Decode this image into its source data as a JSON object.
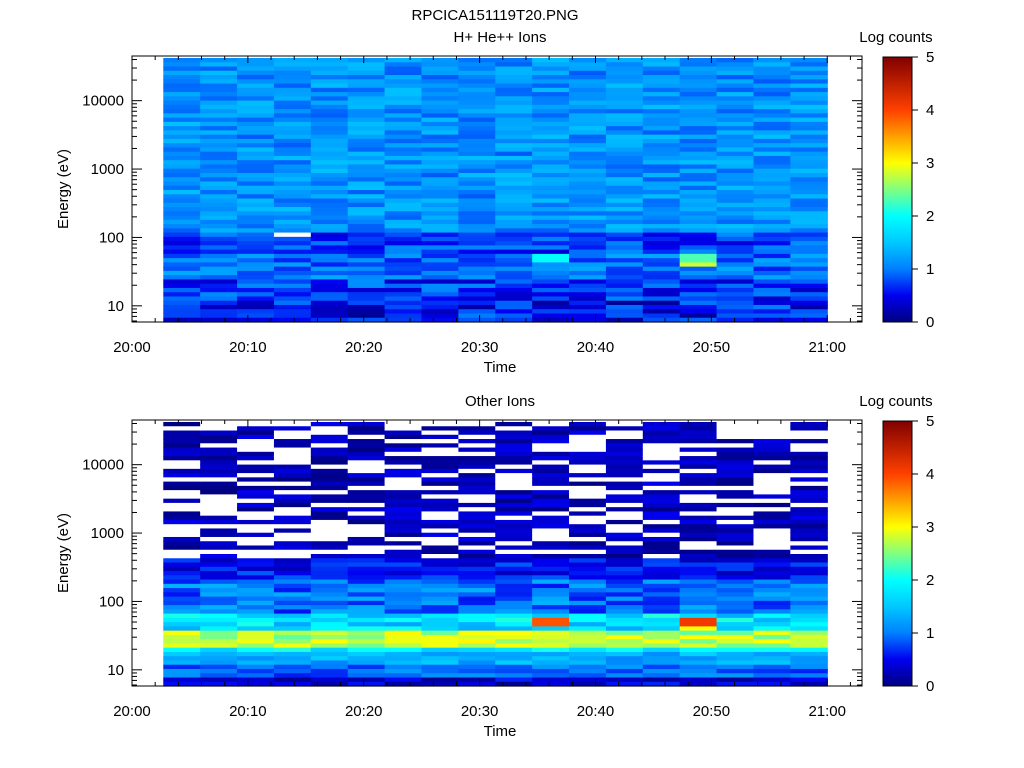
{
  "figure_title": "RPCICA151119T20.PNG",
  "colorbar_levels": [
    {
      "v": 0,
      "color": "#000080"
    },
    {
      "v": 0.5,
      "color": "#0000f0"
    },
    {
      "v": 1,
      "color": "#0080ff"
    },
    {
      "v": 1.5,
      "color": "#00c8ff"
    },
    {
      "v": 2,
      "color": "#00ffff"
    },
    {
      "v": 2.5,
      "color": "#80ff80"
    },
    {
      "v": 3,
      "color": "#ffff00"
    },
    {
      "v": 4,
      "color": "#ff4000"
    },
    {
      "v": 5,
      "color": "#800000"
    }
  ],
  "chart_data": [
    {
      "type": "heatmap",
      "title": "H+ He++ Ions",
      "xlabel": "Time",
      "ylabel": "Energy (eV)",
      "colorbar_label": "Log counts",
      "colorbar_range": [
        0,
        5
      ],
      "colorbar_ticks": [
        "0",
        "1",
        "2",
        "3",
        "4",
        "5"
      ],
      "x_tick_labels": [
        "20:00",
        "20:10",
        "20:20",
        "20:30",
        "20:40",
        "20:50",
        "21:00"
      ],
      "x_range_min": [
        0,
        63
      ],
      "data_x_range_min": [
        2.7,
        60
      ],
      "y_tick_labels": [
        "10",
        "100",
        "1000",
        "10000"
      ],
      "y_tick_values": [
        10,
        100,
        1000,
        10000
      ],
      "y_scale": "log",
      "y_range": [
        5.8,
        45000
      ],
      "background_level": 1.05,
      "noise": 0.35,
      "dropout_prob": 0,
      "bands": [
        {
          "e_min": 5.8,
          "e_max": 12,
          "level": 0.55,
          "noise": 0.45
        },
        {
          "e_min": 12,
          "e_max": 25,
          "level": 0.7,
          "noise": 0.4
        },
        {
          "e_min": 25,
          "e_max": 60,
          "level": 0.95,
          "noise": 0.35
        },
        {
          "e_min": 60,
          "e_max": 120,
          "level": 0.75,
          "noise": 0.35
        },
        {
          "e_min": 120,
          "e_max": 45000,
          "level": 1.15,
          "noise": 0.3
        }
      ],
      "features": [
        {
          "t": 14,
          "e_min": 105,
          "e_max": 112,
          "level": null
        },
        {
          "t": 36,
          "e_min": 45,
          "e_max": 60,
          "level": 2.0
        },
        {
          "t": 49,
          "e_min": 45,
          "e_max": 58,
          "level": 2.3
        },
        {
          "t": 49,
          "e_min": 36,
          "e_max": 45,
          "level": 2.8
        }
      ]
    },
    {
      "type": "heatmap",
      "title": "Other Ions",
      "xlabel": "Time",
      "ylabel": "Energy (eV)",
      "colorbar_label": "Log counts",
      "colorbar_range": [
        0,
        5
      ],
      "colorbar_ticks": [
        "0",
        "1",
        "2",
        "3",
        "4",
        "5"
      ],
      "x_tick_labels": [
        "20:00",
        "20:10",
        "20:20",
        "20:30",
        "20:40",
        "20:50",
        "21:00"
      ],
      "x_range_min": [
        0,
        63
      ],
      "data_x_range_min": [
        2.7,
        60
      ],
      "y_tick_labels": [
        "10",
        "100",
        "1000",
        "10000"
      ],
      "y_tick_values": [
        10,
        100,
        1000,
        10000
      ],
      "y_scale": "log",
      "y_range": [
        5.8,
        45000
      ],
      "background_level": 0.25,
      "noise": 0.25,
      "dropout_prob": 0.38,
      "bands": [
        {
          "e_min": 5.8,
          "e_max": 8,
          "level": 0.35,
          "noise": 0.3
        },
        {
          "e_min": 8,
          "e_max": 12,
          "level": 0.9,
          "noise": 0.3
        },
        {
          "e_min": 12,
          "e_max": 17,
          "level": 1.3,
          "noise": 0.3
        },
        {
          "e_min": 17,
          "e_max": 22,
          "level": 1.9,
          "noise": 0.35
        },
        {
          "e_min": 22,
          "e_max": 38,
          "level": 2.7,
          "noise": 0.35
        },
        {
          "e_min": 38,
          "e_max": 70,
          "level": 1.7,
          "noise": 0.45
        },
        {
          "e_min": 70,
          "e_max": 200,
          "level": 0.95,
          "noise": 0.4
        },
        {
          "e_min": 200,
          "e_max": 400,
          "level": 0.55,
          "noise": 0.3
        }
      ],
      "features": [
        {
          "t": 36,
          "e_min": 44,
          "e_max": 56,
          "level": 3.9
        },
        {
          "t": 49,
          "e_min": 44,
          "e_max": 58,
          "level": 4.1
        },
        {
          "t": 49,
          "e_min": 38,
          "e_max": 44,
          "level": 3.0
        }
      ]
    }
  ]
}
